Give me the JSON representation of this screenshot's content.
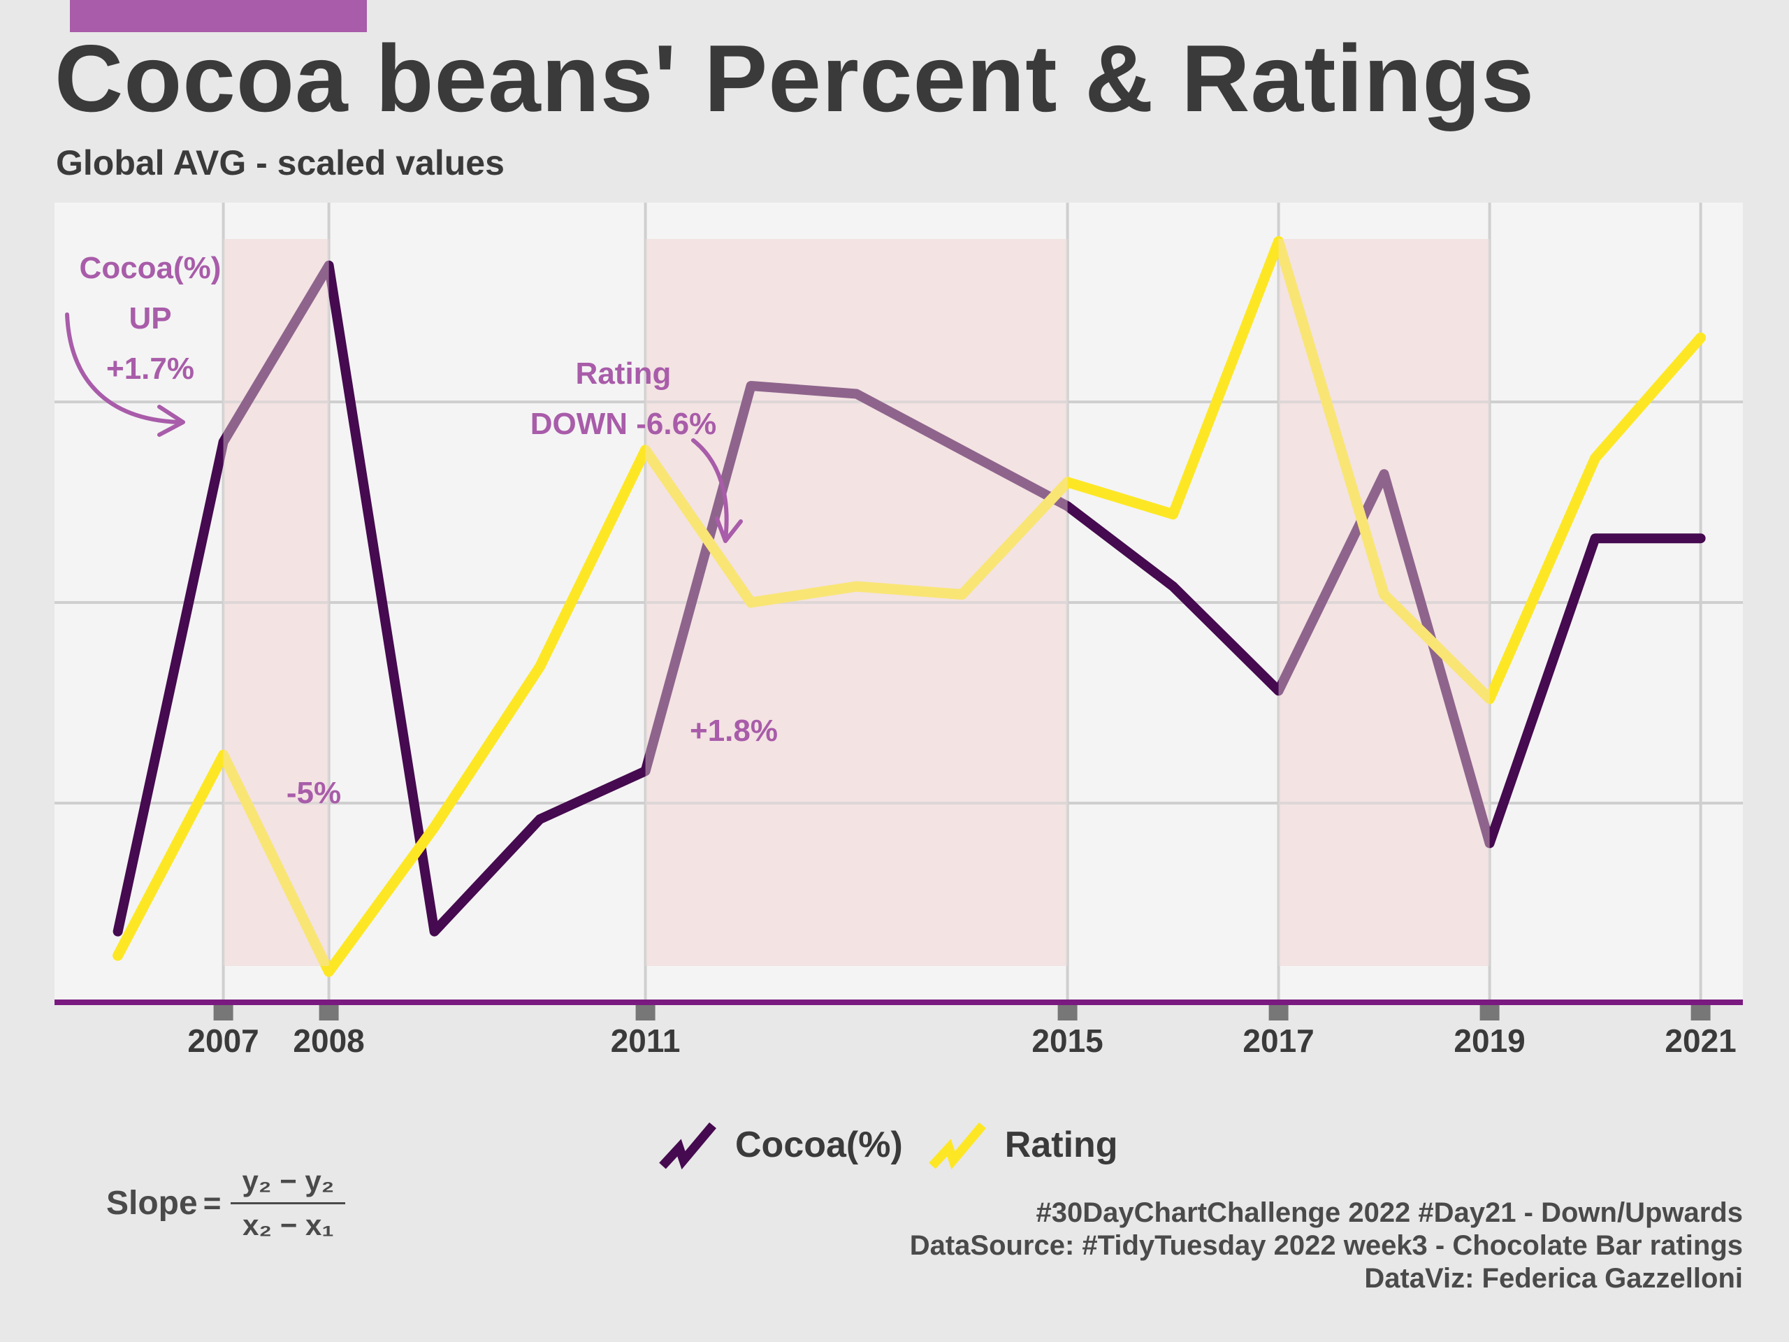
{
  "header": {
    "title": "Cocoa beans' Percent & Ratings",
    "subtitle": "Global AVG - scaled values"
  },
  "colors": {
    "cocoa": "#450a4f",
    "rating": "#fde725",
    "accent": "#a85ca9",
    "highlight": "#f3e3e3",
    "axis": "#7a1a80",
    "panel": "#f4f4f4",
    "background": "#e8e8e8"
  },
  "chart_data": {
    "type": "line",
    "x": [
      2006,
      2007,
      2008,
      2009,
      2010,
      2011,
      2012,
      2013,
      2014,
      2015,
      2016,
      2017,
      2018,
      2019,
      2020,
      2021
    ],
    "xlim": [
      2005.4,
      2021.4
    ],
    "ylim": [
      0,
      1
    ],
    "xtick_labels": [
      "2007",
      "2008",
      "2011",
      "2015",
      "2017",
      "2019",
      "2021"
    ],
    "grid": true,
    "legend_position": "bottom",
    "series": [
      {
        "name": "Cocoa(%)",
        "values": [
          0.09,
          0.7,
          0.92,
          0.09,
          0.23,
          0.29,
          0.77,
          0.76,
          0.69,
          0.62,
          0.52,
          0.39,
          0.66,
          0.2,
          0.58,
          0.58
        ]
      },
      {
        "name": "Rating",
        "values": [
          0.06,
          0.31,
          0.04,
          0.22,
          0.42,
          0.69,
          0.5,
          0.52,
          0.51,
          0.65,
          0.61,
          0.95,
          0.51,
          0.38,
          0.68,
          0.83
        ]
      }
    ],
    "highlight_periods": [
      [
        2007,
        2008
      ],
      [
        2011,
        2015
      ],
      [
        2017,
        2019
      ]
    ],
    "annotations": [
      {
        "lines": [
          "Cocoa(%)",
          "UP",
          "+1.7%"
        ]
      },
      {
        "lines": [
          "Rating",
          "DOWN -6.6%"
        ]
      },
      {
        "lines": [
          "+1.8%"
        ]
      },
      {
        "lines": [
          "-5%"
        ]
      }
    ]
  },
  "slope": {
    "label": "Slope",
    "equals": "=",
    "numerator": "y₂ − y₂",
    "denominator": "x₂ − x₁"
  },
  "caption": {
    "line1": "#30DayChartChallenge 2022 #Day21 - Down/Upwards",
    "line2": "DataSource: #TidyTuesday 2022 week3 - Chocolate Bar ratings",
    "line3": "DataViz: Federica Gazzelloni"
  }
}
